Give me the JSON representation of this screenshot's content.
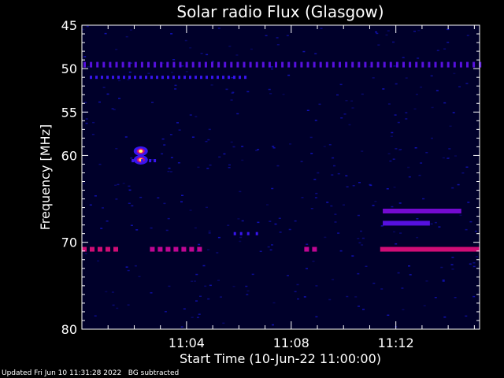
{
  "chart_data": {
    "type": "heatmap",
    "title": "Solar radio Flux (Glasgow)",
    "xlabel": "Start Time (10-Jun-22 11:00:00)",
    "ylabel": "Frequency [MHz]",
    "x_unit": "minutes after 11:00:00",
    "xlim": [
      0.0,
      15.2
    ],
    "ylim": [
      45,
      80
    ],
    "x_ticks": [
      {
        "value": 4,
        "label": "11:04"
      },
      {
        "value": 8,
        "label": "11:08"
      },
      {
        "value": 12,
        "label": "11:12"
      }
    ],
    "y_ticks": [
      {
        "value": 45,
        "label": "45"
      },
      {
        "value": 50,
        "label": "50"
      },
      {
        "value": 55,
        "label": "55"
      },
      {
        "value": 60,
        "label": "60"
      },
      {
        "value": 70,
        "label": "70"
      },
      {
        "value": 80,
        "label": "80"
      }
    ],
    "colormap": [
      "#00002a",
      "#1a1aff",
      "#b000b0",
      "#ff2020",
      "#ffff60"
    ],
    "features": [
      {
        "name": "dotted band",
        "freq": 49.5,
        "x_range": [
          0.0,
          15.2
        ],
        "intensity": 0.35,
        "style": "dotted"
      },
      {
        "name": "dotted band",
        "freq": 51.0,
        "x_range": [
          0.3,
          6.4
        ],
        "intensity": 0.3,
        "style": "sparse"
      },
      {
        "name": "hot spot",
        "freq": 59.5,
        "x_range": [
          2.15,
          2.35
        ],
        "intensity": 1.0,
        "style": "spot"
      },
      {
        "name": "hot spot",
        "freq": 60.5,
        "x_range": [
          2.15,
          2.35
        ],
        "intensity": 0.95,
        "style": "spot"
      },
      {
        "name": "band",
        "freq": 60.6,
        "x_range": [
          1.9,
          2.9
        ],
        "intensity": 0.3,
        "style": "sparse"
      },
      {
        "name": "band",
        "freq": 66.4,
        "x_range": [
          11.5,
          14.5
        ],
        "intensity": 0.4,
        "style": "solid"
      },
      {
        "name": "band",
        "freq": 67.8,
        "x_range": [
          11.5,
          13.3
        ],
        "intensity": 0.35,
        "style": "solid"
      },
      {
        "name": "band",
        "freq": 69.0,
        "x_range": [
          5.8,
          6.7
        ],
        "intensity": 0.3,
        "style": "sparse"
      },
      {
        "name": "band",
        "freq": 70.8,
        "x_range": [
          0.0,
          1.4
        ],
        "intensity": 0.6,
        "style": "dashed"
      },
      {
        "name": "band",
        "freq": 70.8,
        "x_range": [
          2.6,
          4.5
        ],
        "intensity": 0.55,
        "style": "dashed"
      },
      {
        "name": "band",
        "freq": 70.8,
        "x_range": [
          8.5,
          8.9
        ],
        "intensity": 0.55,
        "style": "dashed"
      },
      {
        "name": "band",
        "freq": 70.8,
        "x_range": [
          11.4,
          15.2
        ],
        "intensity": 0.6,
        "style": "solid"
      }
    ]
  },
  "footer": {
    "updated": "Updated Fri Jun 10 11:31:28 2022",
    "mode": "BG subtracted"
  }
}
